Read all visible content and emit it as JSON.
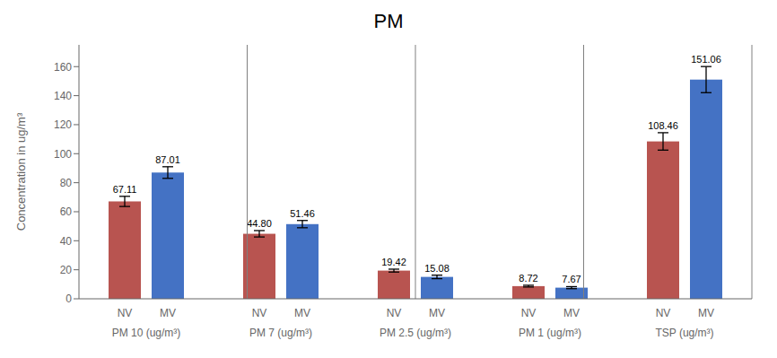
{
  "chart_data": {
    "type": "bar",
    "title": "PM",
    "ylabel": "Concentration in ug/m³",
    "categories": [
      "PM 10 (ug/m³)",
      "PM 7 (ug/m³)",
      "PM 2.5  (ug/m³)",
      "PM 1 (ug/m³)",
      "TSP  (ug/m³)"
    ],
    "series": [
      {
        "name": "NV",
        "color": "#B85450",
        "values": [
          67.11,
          44.8,
          19.42,
          8.72,
          108.46
        ],
        "value_labels": [
          "67.11",
          "44.80",
          "19.42",
          "8.72",
          "108.46"
        ],
        "errors": [
          3.5,
          2.2,
          1.0,
          0.6,
          6.0
        ]
      },
      {
        "name": "MV",
        "color": "#4472C4",
        "values": [
          87.01,
          51.46,
          15.08,
          7.67,
          151.06
        ],
        "value_labels": [
          "87.01",
          "51.46",
          "15.08",
          "7.67",
          "151.06"
        ],
        "errors": [
          4.0,
          2.5,
          1.2,
          0.7,
          9.0
        ]
      }
    ],
    "ylim": [
      0,
      175
    ],
    "yticks": [
      0,
      20,
      40,
      60,
      80,
      100,
      120,
      140,
      160
    ],
    "grid": false,
    "data_labels": true
  }
}
